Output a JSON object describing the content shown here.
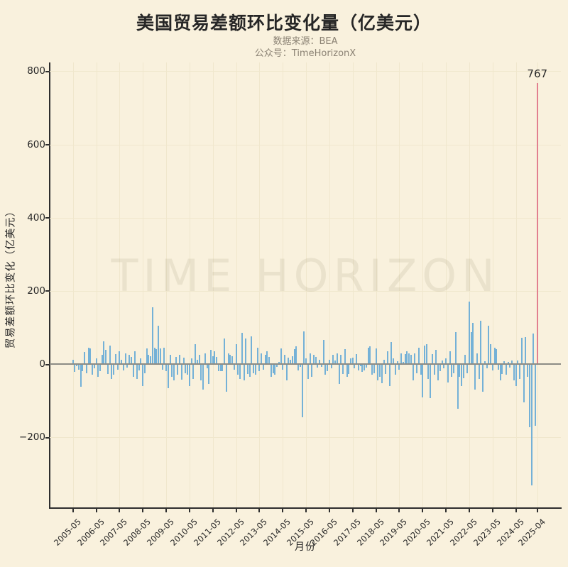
{
  "page": {
    "background": "#f9f1dd",
    "text_color": "#262626",
    "subtitle_color": "#8b8274",
    "spine_color": "#2e2e2e",
    "grid_color": "#f0e7cd",
    "zero_line_color": "#8c8c85",
    "watermark_color": "rgba(110,95,55,0.10)"
  },
  "header": {
    "title": "美国贸易差额环比变化量（亿美元）",
    "source_line": "数据来源：BEA",
    "account_line": "公众号：TimeHorizonX"
  },
  "watermark": "TIME HORIZON",
  "chart_data": {
    "type": "bar",
    "title": "美国贸易差额环比变化量（亿美元）",
    "xlabel": "月份",
    "ylabel": "贸易差额环比变化（亿美元）",
    "frequency": "monthly",
    "start_month": "2005-05",
    "end_month": "2025-04",
    "x_tick_labels": [
      "2005-05",
      "2006-05",
      "2007-05",
      "2008-05",
      "2009-05",
      "2010-05",
      "2011-05",
      "2012-05",
      "2013-05",
      "2014-05",
      "2015-05",
      "2016-05",
      "2017-05",
      "2018-05",
      "2019-05",
      "2020-05",
      "2021-05",
      "2022-05",
      "2023-05",
      "2024-05",
      "2025-04"
    ],
    "y_ticks": [
      800,
      600,
      400,
      200,
      0,
      -200
    ],
    "y_tick_labels": [
      "800",
      "600",
      "400",
      "200",
      "0",
      "−200"
    ],
    "ylim": [
      -391,
      824
    ],
    "grid": true,
    "legend": "none",
    "bar_color": "#74b1d7",
    "highlight_color": "#e2808f",
    "highlight_index": 239,
    "annotation": {
      "text": "767",
      "value": 767,
      "month": "2025-04"
    },
    "values": [
      12,
      -22,
      -5,
      -15,
      -62,
      -20,
      32,
      -25,
      45,
      42,
      -30,
      -12,
      15,
      -35,
      -20,
      25,
      62,
      38,
      -28,
      50,
      -40,
      -30,
      28,
      -15,
      35,
      12,
      -18,
      30,
      -10,
      25,
      20,
      -35,
      35,
      -40,
      -18,
      15,
      -60,
      -25,
      42,
      25,
      22,
      155,
      45,
      40,
      105,
      42,
      -15,
      45,
      -20,
      -65,
      25,
      -35,
      -45,
      20,
      -30,
      25,
      -42,
      18,
      -25,
      -30,
      -60,
      15,
      -40,
      55,
      12,
      25,
      -45,
      -70,
      30,
      -12,
      -55,
      38,
      22,
      35,
      20,
      -20,
      -20,
      -20,
      70,
      -75,
      30,
      25,
      22,
      -15,
      55,
      -30,
      -40,
      85,
      -45,
      70,
      -28,
      -35,
      75,
      -25,
      -30,
      45,
      -20,
      30,
      -15,
      25,
      35,
      20,
      -35,
      -25,
      -30,
      -8,
      5,
      42,
      -15,
      25,
      -45,
      18,
      12,
      22,
      40,
      48,
      -18,
      -8,
      -145,
      90,
      15,
      -40,
      30,
      -35,
      25,
      20,
      -10,
      12,
      -8,
      65,
      -30,
      -20,
      12,
      -12,
      25,
      10,
      30,
      -55,
      25,
      -28,
      40,
      -35,
      -28,
      15,
      18,
      -12,
      28,
      -18,
      -5,
      -22,
      -18,
      -10,
      45,
      48,
      -30,
      -25,
      42,
      -45,
      -35,
      -52,
      12,
      -28,
      35,
      -60,
      60,
      15,
      -30,
      8,
      -15,
      30,
      5,
      28,
      35,
      30,
      25,
      -45,
      30,
      -25,
      45,
      -30,
      -92,
      50,
      55,
      -40,
      -94,
      28,
      -30,
      38,
      -45,
      -20,
      10,
      -12,
      15,
      -50,
      35,
      -35,
      -25,
      88,
      -123,
      -35,
      -60,
      -38,
      25,
      -25,
      170,
      88,
      112,
      -70,
      30,
      -40,
      119,
      -75,
      8,
      -12,
      105,
      55,
      -18,
      45,
      40,
      -15,
      -45,
      -28,
      8,
      -30,
      6,
      -10,
      10,
      -45,
      -60,
      10,
      -40,
      72,
      -104,
      74,
      -35,
      -172,
      -332,
      83,
      -169,
      767
    ]
  }
}
